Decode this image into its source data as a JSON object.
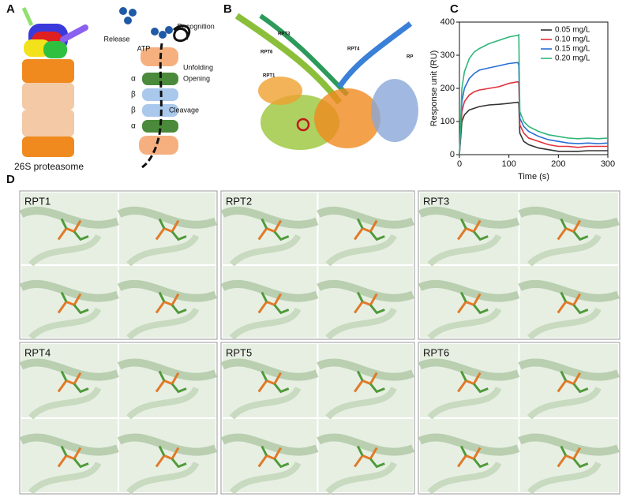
{
  "panel_labels": [
    "A",
    "B",
    "C",
    "D"
  ],
  "panel_a": {
    "caption": "26S proteasome",
    "steps": [
      "Recognition",
      "Release",
      "ATP",
      "Unfolding",
      "Opening",
      "Cleavage"
    ],
    "rings": [
      "α",
      "β",
      "β",
      "α"
    ]
  },
  "panel_b": {
    "subunits": [
      "RPT3",
      "RPT6",
      "RPT1",
      "RPT4",
      "RP"
    ]
  },
  "chart_data": {
    "type": "line",
    "x": [
      0,
      5,
      10,
      20,
      30,
      40,
      60,
      80,
      100,
      118,
      120,
      122,
      130,
      140,
      160,
      180,
      200,
      220,
      240,
      260,
      280,
      300
    ],
    "series": [
      {
        "name": "0.05 mg/L",
        "color": "#333333",
        "values": [
          0,
          100,
          120,
          135,
          140,
          145,
          150,
          152,
          155,
          158,
          155,
          65,
          40,
          30,
          20,
          15,
          10,
          10,
          10,
          12,
          12,
          12
        ]
      },
      {
        "name": "0.10 mg/L",
        "color": "#e0303a",
        "values": [
          0,
          130,
          160,
          180,
          190,
          195,
          200,
          205,
          215,
          220,
          215,
          90,
          65,
          50,
          40,
          30,
          25,
          25,
          22,
          25,
          25,
          25
        ]
      },
      {
        "name": "0.15 mg/L",
        "color": "#2a6fd6",
        "values": [
          0,
          160,
          200,
          230,
          245,
          255,
          262,
          268,
          275,
          278,
          270,
          110,
          85,
          70,
          55,
          45,
          40,
          35,
          33,
          35,
          33,
          35
        ]
      },
      {
        "name": "0.20 mg/L",
        "color": "#2fb57a",
        "values": [
          0,
          200,
          250,
          290,
          310,
          320,
          335,
          345,
          355,
          360,
          362,
          130,
          100,
          85,
          70,
          60,
          55,
          50,
          48,
          50,
          48,
          50
        ]
      }
    ],
    "xlim": [
      0,
      300
    ],
    "xticks": [
      0,
      100,
      200,
      300
    ],
    "ylim": [
      0,
      400
    ],
    "yticks": [
      0,
      100,
      200,
      300,
      400
    ],
    "xlabel": "Time (s)",
    "ylabel": "Response unit (RU)",
    "legend": "upper right"
  },
  "panel_d": {
    "panels": [
      "RPT1",
      "RPT2",
      "RPT3",
      "RPT4",
      "RPT5",
      "RPT6"
    ]
  }
}
